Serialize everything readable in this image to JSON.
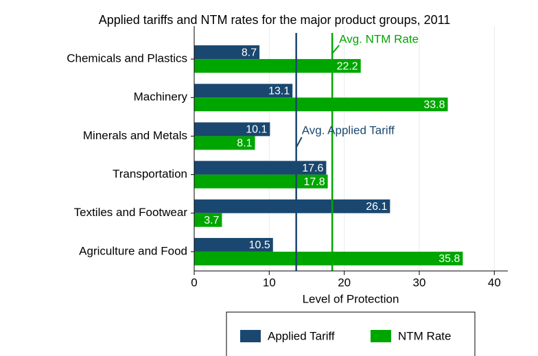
{
  "chart_data": {
    "type": "bar",
    "orientation": "horizontal",
    "title": "Applied tariffs and NTM rates for the major product groups, 2011",
    "x_label": "Level of Protection",
    "categories": [
      "Chemicals and Plastics",
      "Machinery",
      "Minerals and Metals",
      "Transportation",
      "Textiles and Footwear",
      "Agriculture and Food"
    ],
    "series": [
      {
        "name": "Applied Tariff",
        "color": "#1a476f",
        "values": [
          8.7,
          13.1,
          10.1,
          17.6,
          26.1,
          10.5
        ]
      },
      {
        "name": "NTM Rate",
        "color": "#00a600",
        "values": [
          22.2,
          33.8,
          8.1,
          17.8,
          3.7,
          35.8
        ]
      }
    ],
    "reference_lines": [
      {
        "label": "Avg. Applied Tariff",
        "value": 13.6,
        "color": "#1a476f"
      },
      {
        "label": "Avg. NTM Rate",
        "value": 18.4,
        "color": "#00a600"
      }
    ],
    "xlim": [
      0,
      41.8
    ],
    "xticks": [
      0,
      10,
      20,
      30,
      40
    ],
    "grid": true,
    "legend": "bottom"
  }
}
